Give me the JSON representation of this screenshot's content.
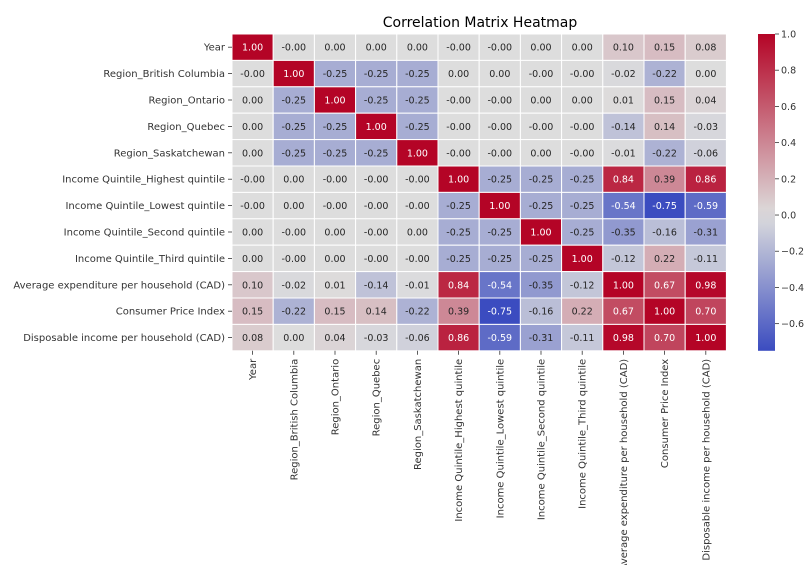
{
  "chart_data": {
    "type": "heatmap",
    "title": "Correlation Matrix Heatmap",
    "labels": [
      "Year",
      "Region_British Columbia",
      "Region_Ontario",
      "Region_Quebec",
      "Region_Saskatchewan",
      "Income Quintile_Highest quintile",
      "Income Quintile_Lowest quintile",
      "Income Quintile_Second quintile",
      "Income Quintile_Third quintile",
      "Average expenditure per household (CAD)",
      "Consumer Price Index",
      "Disposable income per household (CAD)"
    ],
    "cells": [
      [
        "1.00",
        "-0.00",
        "0.00",
        "0.00",
        "0.00",
        "-0.00",
        "-0.00",
        "0.00",
        "0.00",
        "0.10",
        "0.15",
        "0.08"
      ],
      [
        "-0.00",
        "1.00",
        "-0.25",
        "-0.25",
        "-0.25",
        "0.00",
        "0.00",
        "-0.00",
        "-0.00",
        "-0.02",
        "-0.22",
        "0.00"
      ],
      [
        "0.00",
        "-0.25",
        "1.00",
        "-0.25",
        "-0.25",
        "-0.00",
        "-0.00",
        "0.00",
        "0.00",
        "0.01",
        "0.15",
        "0.04"
      ],
      [
        "0.00",
        "-0.25",
        "-0.25",
        "1.00",
        "-0.25",
        "-0.00",
        "-0.00",
        "-0.00",
        "-0.00",
        "-0.14",
        "0.14",
        "-0.03"
      ],
      [
        "0.00",
        "-0.25",
        "-0.25",
        "-0.25",
        "1.00",
        "-0.00",
        "-0.00",
        "0.00",
        "-0.00",
        "-0.01",
        "-0.22",
        "-0.06"
      ],
      [
        "-0.00",
        "0.00",
        "-0.00",
        "-0.00",
        "-0.00",
        "1.00",
        "-0.25",
        "-0.25",
        "-0.25",
        "0.84",
        "0.39",
        "0.86"
      ],
      [
        "-0.00",
        "0.00",
        "-0.00",
        "-0.00",
        "-0.00",
        "-0.25",
        "1.00",
        "-0.25",
        "-0.25",
        "-0.54",
        "-0.75",
        "-0.59"
      ],
      [
        "0.00",
        "-0.00",
        "0.00",
        "-0.00",
        "0.00",
        "-0.25",
        "-0.25",
        "1.00",
        "-0.25",
        "-0.35",
        "-0.16",
        "-0.31"
      ],
      [
        "0.00",
        "-0.00",
        "0.00",
        "-0.00",
        "-0.00",
        "-0.25",
        "-0.25",
        "-0.25",
        "1.00",
        "-0.12",
        "0.22",
        "-0.11"
      ],
      [
        "0.10",
        "-0.02",
        "0.01",
        "-0.14",
        "-0.01",
        "0.84",
        "-0.54",
        "-0.35",
        "-0.12",
        "1.00",
        "0.67",
        "0.98"
      ],
      [
        "0.15",
        "-0.22",
        "0.15",
        "0.14",
        "-0.22",
        "0.39",
        "-0.75",
        "-0.16",
        "0.22",
        "0.67",
        "1.00",
        "0.70"
      ],
      [
        "0.08",
        "0.00",
        "0.04",
        "-0.03",
        "-0.06",
        "0.86",
        "-0.59",
        "-0.31",
        "-0.11",
        "0.98",
        "0.70",
        "1.00"
      ]
    ],
    "colorbar": {
      "range": [
        -0.75,
        1.0
      ],
      "ticks": [
        "1.0",
        "0.8",
        "0.6",
        "0.4",
        "0.2",
        "0.0",
        "-0.2",
        "-0.4",
        "-0.6"
      ]
    },
    "colormap": "coolwarm",
    "colors": {
      "low": "#3b4cc0",
      "mid": "#dddddd",
      "high": "#b40426",
      "gridline": "#ffffff"
    }
  }
}
